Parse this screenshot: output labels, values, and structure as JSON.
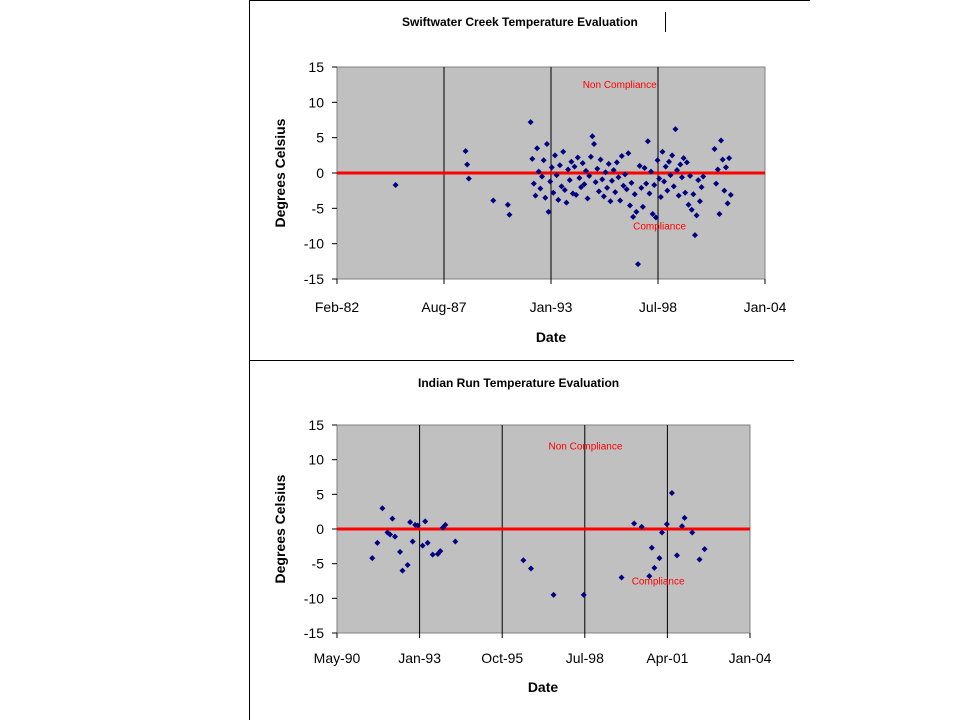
{
  "chart_data": [
    {
      "type": "scatter",
      "title": "Swiftwater Creek Temperature Evaluation",
      "xlabel": "Date",
      "ylabel": "Degrees Celsius",
      "xticks": [
        "Feb-82",
        "Aug-87",
        "Jan-93",
        "Jul-98",
        "Jan-04"
      ],
      "xlim": [
        "1982-02-01",
        "2004-01-01"
      ],
      "yticks": [
        "15",
        "10",
        "5",
        "0",
        "-5",
        "-10",
        "-15"
      ],
      "ylim": [
        -15,
        15
      ],
      "reference_line": 0,
      "annotations": [
        {
          "text": "Non Compliance",
          "x": "1994-09-01",
          "y": 12
        },
        {
          "text": "Compliance",
          "x": "1997-04-01",
          "y": -8
        }
      ],
      "grid": "vertical",
      "legend": "none",
      "marker_color": "#000080",
      "line_color": "#ff0000",
      "series": [
        {
          "points": [
            [
              "1985-02-01",
              -1.7
            ],
            [
              "1988-09-01",
              3.1
            ],
            [
              "1988-10-01",
              1.2
            ],
            [
              "1988-11-01",
              -0.8
            ],
            [
              "1990-02-01",
              -3.9
            ],
            [
              "1990-11-01",
              -4.5
            ],
            [
              "1990-12-01",
              -5.9
            ],
            [
              "1992-01-01",
              7.2
            ],
            [
              "1992-02-01",
              2.0
            ],
            [
              "1992-03-01",
              -1.5
            ],
            [
              "1992-04-01",
              -3.2
            ],
            [
              "1992-05-01",
              3.5
            ],
            [
              "1992-06-01",
              0.2
            ],
            [
              "1992-07-01",
              -2.2
            ],
            [
              "1992-08-01",
              -0.5
            ],
            [
              "1992-09-01",
              1.8
            ],
            [
              "1992-10-01",
              -3.5
            ],
            [
              "1992-11-01",
              4.1
            ],
            [
              "1992-12-01",
              -5.5
            ],
            [
              "1993-01-01",
              -1.2
            ],
            [
              "1993-02-01",
              0.8
            ],
            [
              "1993-03-01",
              -2.8
            ],
            [
              "1993-04-01",
              2.5
            ],
            [
              "1993-05-01",
              -0.3
            ],
            [
              "1993-06-01",
              -3.8
            ],
            [
              "1993-07-01",
              1.1
            ],
            [
              "1993-08-01",
              -1.9
            ],
            [
              "1993-09-01",
              3.0
            ],
            [
              "1993-10-01",
              -2.4
            ],
            [
              "1993-11-01",
              -4.2
            ],
            [
              "1993-12-01",
              0.5
            ],
            [
              "1994-01-01",
              -1.0
            ],
            [
              "1994-02-01",
              1.6
            ],
            [
              "1994-03-01",
              -2.9
            ],
            [
              "1994-04-01",
              0.9
            ],
            [
              "1994-05-01",
              -3.1
            ],
            [
              "1994-06-01",
              2.2
            ],
            [
              "1994-07-01",
              -0.7
            ],
            [
              "1994-08-01",
              -2.0
            ],
            [
              "1994-09-01",
              1.4
            ],
            [
              "1994-10-01",
              -1.6
            ],
            [
              "1994-11-01",
              0.3
            ],
            [
              "1994-12-01",
              -3.6
            ],
            [
              "1995-01-01",
              -0.4
            ],
            [
              "1995-02-01",
              2.3
            ],
            [
              "1995-03-01",
              5.2
            ],
            [
              "1995-04-01",
              4.1
            ],
            [
              "1995-05-01",
              -1.3
            ],
            [
              "1995-06-01",
              0.6
            ],
            [
              "1995-07-01",
              -2.6
            ],
            [
              "1995-08-01",
              1.9
            ],
            [
              "1995-09-01",
              -0.9
            ],
            [
              "1995-10-01",
              -3.3
            ],
            [
              "1995-11-01",
              0.1
            ],
            [
              "1995-12-01",
              -2.1
            ],
            [
              "1996-01-01",
              1.3
            ],
            [
              "1996-02-01",
              -4.0
            ],
            [
              "1996-03-01",
              -1.1
            ],
            [
              "1996-04-01",
              0.4
            ],
            [
              "1996-05-01",
              -2.7
            ],
            [
              "1996-06-01",
              1.5
            ],
            [
              "1996-07-01",
              -0.6
            ],
            [
              "1996-08-01",
              -3.9
            ],
            [
              "1996-09-01",
              2.4
            ],
            [
              "1996-10-01",
              -1.8
            ],
            [
              "1996-11-01",
              -0.2
            ],
            [
              "1996-12-01",
              -2.3
            ],
            [
              "1997-01-01",
              2.8
            ],
            [
              "1997-02-01",
              -4.6
            ],
            [
              "1997-03-01",
              -1.4
            ],
            [
              "1997-04-01",
              -6.2
            ],
            [
              "1997-05-01",
              -3.0
            ],
            [
              "1997-06-01",
              -5.5
            ],
            [
              "1997-07-01",
              -12.9
            ],
            [
              "1997-08-01",
              1.0
            ],
            [
              "1997-09-01",
              -2.1
            ],
            [
              "1997-10-01",
              -4.8
            ],
            [
              "1997-11-01",
              0.7
            ],
            [
              "1997-12-01",
              -1.5
            ],
            [
              "1998-01-01",
              4.5
            ],
            [
              "1998-02-01",
              -2.9
            ],
            [
              "1998-03-01",
              0.2
            ],
            [
              "1998-04-01",
              -5.8
            ],
            [
              "1998-05-01",
              -1.7
            ],
            [
              "1998-06-01",
              -6.3
            ],
            [
              "1998-07-01",
              1.8
            ],
            [
              "1998-08-01",
              -0.8
            ],
            [
              "1998-09-01",
              -3.4
            ],
            [
              "1998-10-01",
              3.0
            ],
            [
              "1998-11-01",
              -1.2
            ],
            [
              "1998-12-01",
              0.9
            ],
            [
              "1999-01-01",
              -2.5
            ],
            [
              "1999-02-01",
              1.6
            ],
            [
              "1999-03-01",
              -0.3
            ],
            [
              "1999-04-01",
              2.5
            ],
            [
              "1999-05-01",
              -1.9
            ],
            [
              "1999-06-01",
              6.2
            ],
            [
              "1999-07-01",
              0.4
            ],
            [
              "1999-08-01",
              -3.2
            ],
            [
              "1999-09-01",
              1.2
            ],
            [
              "1999-10-01",
              -0.6
            ],
            [
              "1999-11-01",
              2.1
            ],
            [
              "1999-12-01",
              -2.8
            ],
            [
              "2000-01-01",
              1.5
            ],
            [
              "2000-02-01",
              -4.5
            ],
            [
              "2000-03-01",
              -0.4
            ],
            [
              "2000-04-01",
              -5.2
            ],
            [
              "2000-05-01",
              -3.0
            ],
            [
              "2000-06-01",
              -8.8
            ],
            [
              "2000-07-01",
              -6.0
            ],
            [
              "2000-08-01",
              -1.0
            ],
            [
              "2000-09-01",
              -4.0
            ],
            [
              "2000-10-01",
              -2.0
            ],
            [
              "2000-11-01",
              -0.5
            ],
            [
              "2001-06-01",
              3.4
            ],
            [
              "2001-07-01",
              -1.5
            ],
            [
              "2001-08-01",
              0.5
            ],
            [
              "2001-09-01",
              -5.8
            ],
            [
              "2001-10-01",
              4.6
            ],
            [
              "2001-11-01",
              1.9
            ],
            [
              "2001-12-01",
              -2.5
            ],
            [
              "2002-01-01",
              0.8
            ],
            [
              "2002-02-01",
              -4.3
            ],
            [
              "2002-03-01",
              2.1
            ],
            [
              "2002-04-01",
              -3.1
            ]
          ]
        }
      ]
    },
    {
      "type": "scatter",
      "title": "Indian Run Temperature Evaluation",
      "xlabel": "Date",
      "ylabel": "Degrees Celsius",
      "xticks": [
        "May-90",
        "Jan-93",
        "Oct-95",
        "Jul-98",
        "Apr-01",
        "Jan-04"
      ],
      "xlim": [
        "1990-05-01",
        "2004-01-01"
      ],
      "yticks": [
        "15",
        "10",
        "5",
        "0",
        "-5",
        "-10",
        "-15"
      ],
      "ylim": [
        -15,
        15
      ],
      "reference_line": 0,
      "annotations": [
        {
          "text": "Non Compliance",
          "x": "1997-05-01",
          "y": 11.5
        },
        {
          "text": "Compliance",
          "x": "2000-02-01",
          "y": -8
        }
      ],
      "grid": "vertical",
      "legend": "none",
      "marker_color": "#000080",
      "line_color": "#ff0000",
      "series": [
        {
          "points": [
            [
              "1991-07-01",
              -4.2
            ],
            [
              "1991-09-01",
              -2.0
            ],
            [
              "1991-11-01",
              3.0
            ],
            [
              "1992-01-01",
              -0.5
            ],
            [
              "1992-02-01",
              -0.8
            ],
            [
              "1992-03-01",
              1.5
            ],
            [
              "1992-04-01",
              -1.1
            ],
            [
              "1992-06-01",
              -3.3
            ],
            [
              "1992-07-01",
              -6.0
            ],
            [
              "1992-09-01",
              -5.2
            ],
            [
              "1992-10-01",
              1.0
            ],
            [
              "1992-11-01",
              -1.8
            ],
            [
              "1992-12-01",
              0.6
            ],
            [
              "1993-01-01",
              0.5
            ],
            [
              "1993-03-01",
              -2.4
            ],
            [
              "1993-04-01",
              1.1
            ],
            [
              "1993-05-01",
              -2.0
            ],
            [
              "1993-07-01",
              -3.7
            ],
            [
              "1993-09-01",
              -3.6
            ],
            [
              "1993-10-01",
              -3.2
            ],
            [
              "1993-11-01",
              0.2
            ],
            [
              "1993-12-01",
              0.6
            ],
            [
              "1994-04-01",
              -1.8
            ],
            [
              "1996-07-01",
              -4.5
            ],
            [
              "1996-10-01",
              -5.7
            ],
            [
              "1997-07-01",
              -9.5
            ],
            [
              "1998-07-01",
              -9.5
            ],
            [
              "1999-10-01",
              -7.0
            ],
            [
              "2000-03-01",
              0.8
            ],
            [
              "2000-06-01",
              0.3
            ],
            [
              "2000-09-01",
              -6.8
            ],
            [
              "2000-10-01",
              -2.7
            ],
            [
              "2000-11-01",
              -5.6
            ],
            [
              "2001-01-01",
              -4.2
            ],
            [
              "2001-02-01",
              -0.5
            ],
            [
              "2001-04-01",
              0.7
            ],
            [
              "2001-06-01",
              5.2
            ],
            [
              "2001-08-01",
              -3.8
            ],
            [
              "2001-10-01",
              0.4
            ],
            [
              "2001-11-01",
              1.6
            ],
            [
              "2002-02-01",
              -0.5
            ],
            [
              "2002-05-01",
              -4.4
            ],
            [
              "2002-07-01",
              -2.9
            ]
          ]
        }
      ]
    }
  ]
}
